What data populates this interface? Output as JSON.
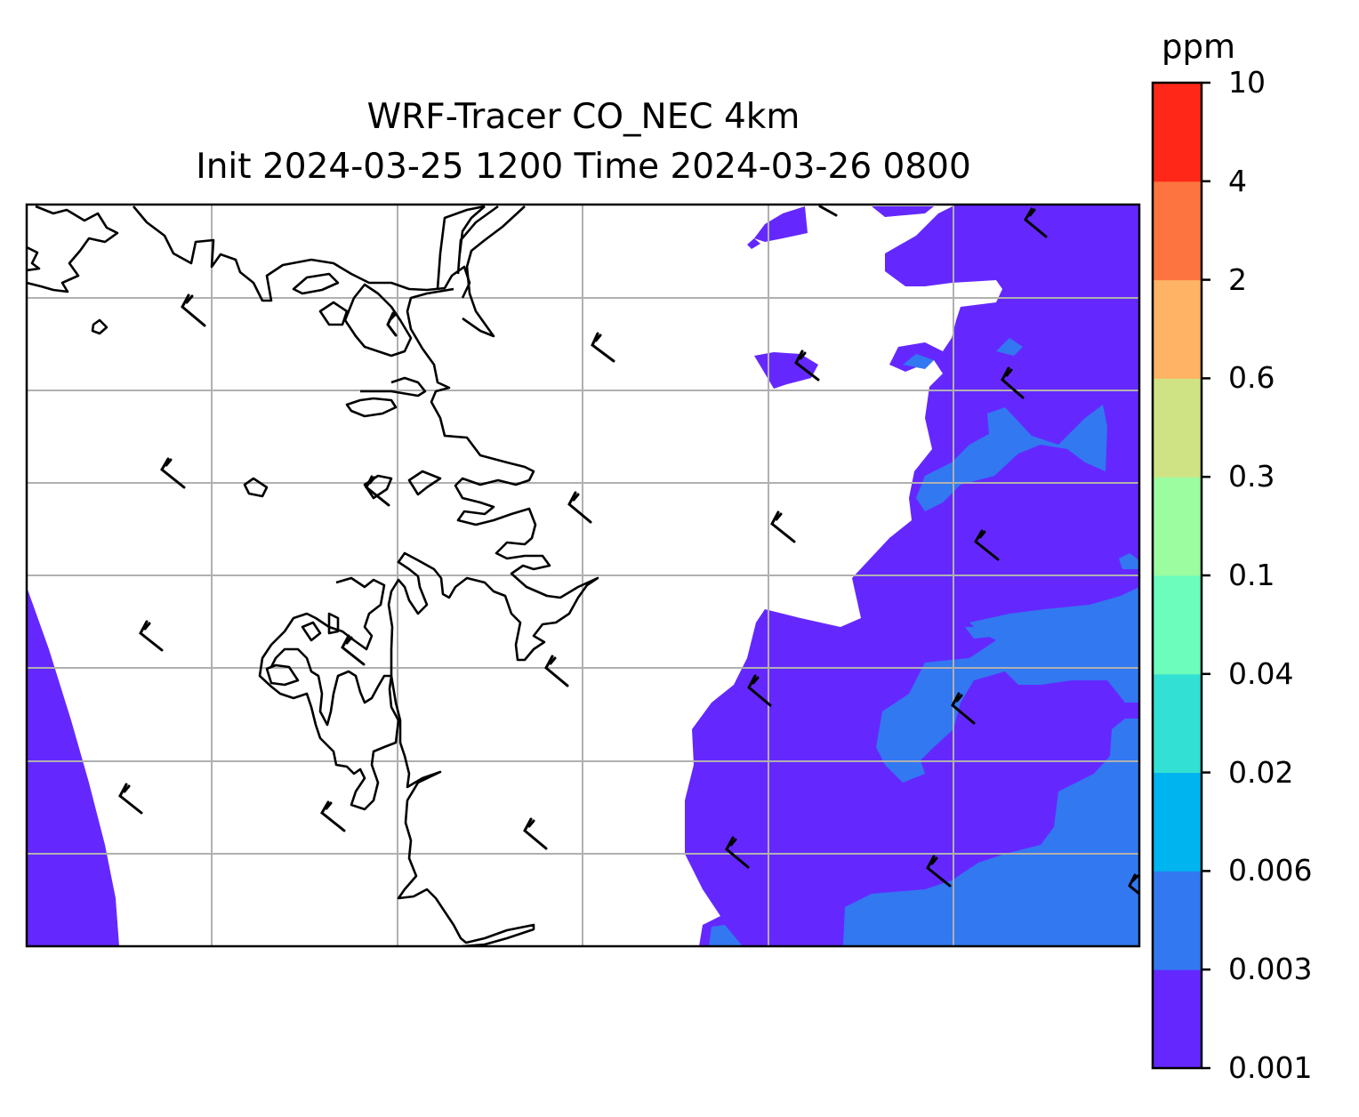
{
  "title": {
    "line1": "WRF-Tracer CO_NEC 4km",
    "line2": "Init 2024-03-25 1200 Time 2024-03-26 0800"
  },
  "colorbar": {
    "unit": "ppm",
    "levels": [
      "0.001",
      "0.003",
      "0.006",
      "0.02",
      "0.04",
      "0.1",
      "0.3",
      "0.6",
      "2",
      "4",
      "10"
    ],
    "colors": [
      "#6428ff",
      "#3278f0",
      "#00b4ef",
      "#32e0d4",
      "#6cfcbb",
      "#9cfca0",
      "#d0e384",
      "#feb464",
      "#fe7440",
      "#ff2818"
    ]
  },
  "map": {
    "background": "#ffffff",
    "gridline_color": "#b0b0b0",
    "coastline_color": "#000000",
    "barb_color": "#000000",
    "gridlines": "on"
  }
}
